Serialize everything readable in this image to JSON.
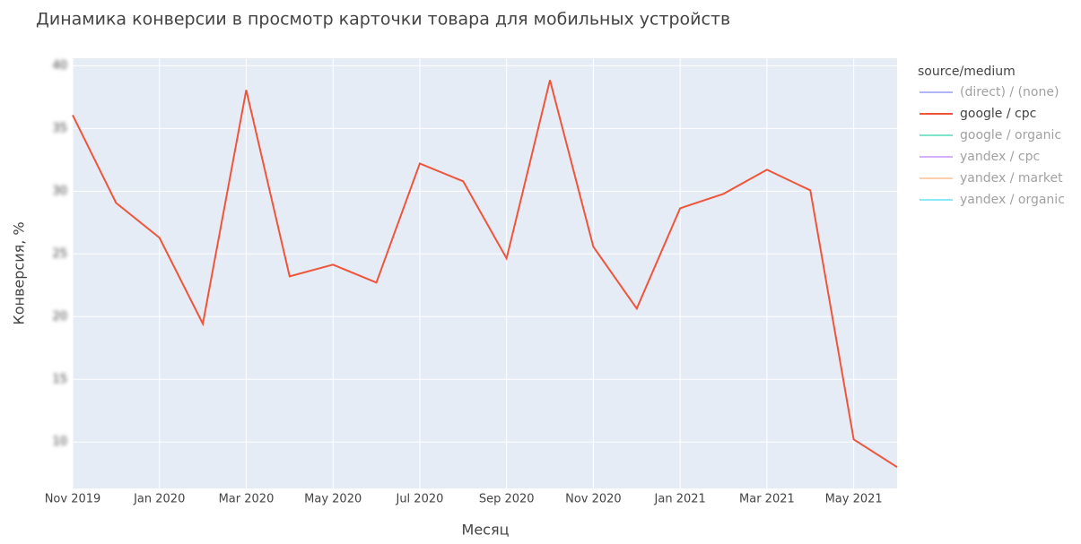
{
  "chart_data": {
    "type": "line",
    "title": "Динамика конверсии в просмотр карточки товара для мобильных устройств",
    "xlabel": "Месяц",
    "ylabel": "Конверсия, %",
    "legend_title": "source/medium",
    "x": [
      "2019-11",
      "2019-12",
      "2020-01",
      "2020-02",
      "2020-03",
      "2020-04",
      "2020-05",
      "2020-06",
      "2020-07",
      "2020-08",
      "2020-09",
      "2020-10",
      "2020-11",
      "2020-12",
      "2021-01",
      "2021-02",
      "2021-03",
      "2021-04",
      "2021-05",
      "2021-06"
    ],
    "xlim": [
      "2019-11",
      "2021-06"
    ],
    "xticks": [
      {
        "value": "2019-11",
        "label": "Nov 2019"
      },
      {
        "value": "2020-01",
        "label": "Jan 2020"
      },
      {
        "value": "2020-03",
        "label": "Mar 2020"
      },
      {
        "value": "2020-05",
        "label": "May 2020"
      },
      {
        "value": "2020-07",
        "label": "Jul 2020"
      },
      {
        "value": "2020-09",
        "label": "Sep 2020"
      },
      {
        "value": "2020-11",
        "label": "Nov 2020"
      },
      {
        "value": "2021-01",
        "label": "Jan 2021"
      },
      {
        "value": "2021-03",
        "label": "Mar 2021"
      },
      {
        "value": "2021-05",
        "label": "May 2021"
      }
    ],
    "ylim": [
      6.3,
      40.6
    ],
    "yticks": [
      10,
      15,
      20,
      25,
      30,
      35,
      40
    ],
    "grid": true,
    "series": [
      {
        "name": "(direct) / (none)",
        "color": "#636efa",
        "visible": false
      },
      {
        "name": "google / cpc",
        "color": "#ef553b",
        "visible": true,
        "values": [
          36.07,
          29.07,
          26.29,
          19.43,
          38.07,
          23.21,
          24.14,
          22.71,
          32.21,
          30.79,
          24.64,
          38.86,
          25.57,
          20.64,
          28.64,
          29.79,
          31.71,
          30.07,
          10.21,
          8.0
        ]
      },
      {
        "name": "google / organic",
        "color": "#00cc96",
        "visible": false
      },
      {
        "name": "yandex / cpc",
        "color": "#ab63fa",
        "visible": false
      },
      {
        "name": "yandex / market",
        "color": "#ffa15a",
        "visible": false
      },
      {
        "name": "yandex / organic",
        "color": "#19d3f3",
        "visible": false
      }
    ]
  }
}
